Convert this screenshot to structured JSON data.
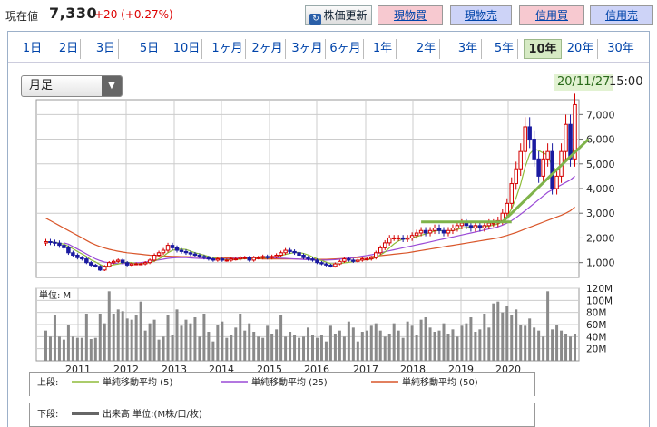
{
  "header": {
    "label": "現在値",
    "price": "7,330",
    "change": "+20 (+0.27%)"
  },
  "buttons": {
    "update": "株価更新",
    "update_icon": "refresh-icon",
    "genbutsu_buy": "現物買",
    "genbutsu_sell": "現物売",
    "shinyo_buy": "信用買",
    "shinyo_sell": "信用売"
  },
  "tabs": [
    "1日",
    "2日",
    "3日",
    "5日",
    "10日",
    "1ヶ月",
    "2ヶ月",
    "3ヶ月",
    "6ヶ月",
    "1年",
    "2年",
    "3年",
    "5年",
    "10年",
    "20年",
    "30年"
  ],
  "active_tab": "10年",
  "dropdown": {
    "value": "月足"
  },
  "timestamp": {
    "date": "20/11/27",
    "time": "15:00"
  },
  "colors": {
    "up": "#d40000",
    "down": "#1a1aa0",
    "ma5": "#8fbc3a",
    "ma25": "#9a4ad6",
    "ma50": "#d9562a",
    "volume": "#8a8a8a",
    "trend": "#7fb34a"
  },
  "chart_data": [
    {
      "type": "line",
      "title": "",
      "x_labels": [
        "2011",
        "2012",
        "2013",
        "2014",
        "2015",
        "2016",
        "2017",
        "2018",
        "2019",
        "2020"
      ],
      "y_ticks": [
        "7,000",
        "6,000",
        "5,000",
        "4,000",
        "3,000",
        "2,000",
        "1,000"
      ],
      "ylim": [
        400,
        7600
      ],
      "months": 118,
      "close": [
        1850,
        1820,
        1790,
        1700,
        1600,
        1400,
        1300,
        1200,
        1150,
        1000,
        900,
        850,
        700,
        850,
        1000,
        1050,
        1100,
        1000,
        900,
        950,
        950,
        950,
        1000,
        1100,
        1300,
        1400,
        1500,
        1700,
        1600,
        1500,
        1450,
        1400,
        1350,
        1300,
        1250,
        1200,
        1150,
        1100,
        1150,
        1100,
        1100,
        1150,
        1150,
        1200,
        1200,
        1100,
        1200,
        1200,
        1250,
        1200,
        1250,
        1300,
        1400,
        1500,
        1450,
        1400,
        1300,
        1200,
        1150,
        1100,
        1000,
        950,
        900,
        850,
        950,
        1050,
        1150,
        1100,
        1050,
        1100,
        1150,
        1150,
        1200,
        1400,
        1600,
        1800,
        2000,
        2000,
        2000,
        1950,
        2000,
        2100,
        2200,
        2300,
        2200,
        2300,
        2400,
        2300,
        2200,
        2300,
        2400,
        2500,
        2600,
        2500,
        2400,
        2500,
        2400,
        2500,
        2600,
        2600,
        2700,
        3000,
        3400,
        4200,
        4800,
        5500,
        6500,
        6000,
        5200,
        4500,
        5200,
        5500,
        4000,
        4500,
        5500,
        6600,
        5200,
        7400
      ],
      "ma5": [
        1850,
        1835,
        1820,
        1790,
        1750,
        1660,
        1560,
        1450,
        1350,
        1250,
        1110,
        1030,
        920,
        840,
        870,
        910,
        940,
        1000,
        1010,
        1000,
        960,
        960,
        970,
        1010,
        1060,
        1150,
        1260,
        1400,
        1500,
        1540,
        1550,
        1530,
        1470,
        1400,
        1350,
        1300,
        1250,
        1200,
        1160,
        1130,
        1120,
        1120,
        1130,
        1140,
        1160,
        1160,
        1170,
        1180,
        1190,
        1190,
        1220,
        1240,
        1280,
        1330,
        1370,
        1410,
        1410,
        1370,
        1310,
        1230,
        1150,
        1080,
        1020,
        960,
        950,
        960,
        990,
        1010,
        1040,
        1090,
        1110,
        1120,
        1140,
        1210,
        1310,
        1430,
        1600,
        1760,
        1880,
        1950,
        1990,
        2010,
        2050,
        2110,
        2160,
        2220,
        2280,
        2300,
        2280,
        2280,
        2300,
        2340,
        2400,
        2420,
        2440,
        2460,
        2460,
        2460,
        2480,
        2520,
        2560,
        2680,
        2860,
        3180,
        3620,
        4180,
        4880,
        5400,
        5600,
        5540,
        5440,
        5360,
        4880,
        4740,
        4940,
        5220,
        5160,
        5840
      ],
      "ma25": [
        null,
        null,
        null,
        null,
        1800,
        1750,
        1650,
        1550,
        1450,
        1350,
        1250,
        1150,
        1080,
        1020,
        990,
        970,
        960,
        960,
        970,
        980,
        990,
        1000,
        1020,
        1050,
        1080,
        1110,
        1140,
        1170,
        1190,
        1200,
        1200,
        1200,
        1190,
        1180,
        1170,
        1160,
        1150,
        1140,
        1140,
        1140,
        1150,
        1160,
        1170,
        1180,
        1190,
        1200,
        1210,
        1220,
        1220,
        1210,
        1200,
        1190,
        1180,
        1170,
        1160,
        1150,
        1140,
        1130,
        1120,
        1110,
        1100,
        1100,
        1100,
        1110,
        1120,
        1140,
        1160,
        1180,
        1200,
        1230,
        1260,
        1290,
        1320,
        1360,
        1400,
        1440,
        1480,
        1520,
        1560,
        1600,
        1640,
        1680,
        1720,
        1760,
        1800,
        1840,
        1880,
        1920,
        1960,
        2000,
        2040,
        2080,
        2120,
        2160,
        2200,
        2240,
        2280,
        2320,
        2360,
        2400,
        2450,
        2520,
        2600,
        2700,
        2820,
        2960,
        3100,
        3250,
        3400,
        3550,
        3700,
        3850,
        3950,
        4050,
        4150,
        4250,
        4350,
        4500
      ],
      "ma50": [
        2800,
        2700,
        2600,
        2500,
        2400,
        2300,
        2200,
        2100,
        2000,
        1900,
        1800,
        1720,
        1650,
        1590,
        1540,
        1500,
        1460,
        1430,
        1400,
        1380,
        1360,
        1340,
        1320,
        1300,
        1290,
        1280,
        1270,
        1260,
        1250,
        1250,
        1240,
        1240,
        1230,
        1230,
        1220,
        1220,
        1210,
        1210,
        1200,
        1200,
        1190,
        1190,
        1180,
        1180,
        1170,
        1170,
        1160,
        1160,
        1150,
        1150,
        1150,
        1150,
        1150,
        1150,
        1150,
        1150,
        1140,
        1140,
        1130,
        1130,
        1130,
        1130,
        1130,
        1140,
        1150,
        1160,
        1170,
        1180,
        1190,
        1200,
        1210,
        1220,
        1240,
        1260,
        1280,
        1300,
        1320,
        1340,
        1360,
        1380,
        1400,
        1430,
        1460,
        1490,
        1520,
        1550,
        1580,
        1610,
        1640,
        1670,
        1700,
        1730,
        1760,
        1790,
        1820,
        1850,
        1880,
        1910,
        1940,
        1970,
        2000,
        2050,
        2100,
        2160,
        2220,
        2290,
        2360,
        2430,
        2500,
        2570,
        2640,
        2710,
        2780,
        2850,
        2920,
        3000,
        3100,
        3250
      ],
      "trend_lines": [
        {
          "from_month": 83,
          "to_month": 103,
          "value": 2650
        },
        {
          "from_month": 101,
          "from_value": 2650,
          "to_month": 118,
          "to_value": 6000
        }
      ],
      "legend": {
        "upper_label": "上段:",
        "lower_label": "下段:",
        "ma5": "単純移動平均 (5)",
        "ma25": "単純移動平均 (25)",
        "ma50": "単純移動平均 (50)",
        "volume": "出来高 単位:(M株/口/枚)"
      }
    },
    {
      "type": "bar",
      "title": "",
      "unit_label": "単位: M",
      "y_ticks": [
        "120M",
        "100M",
        "80M",
        "60M",
        "40M",
        "20M"
      ],
      "ylim": [
        0,
        120
      ],
      "volume": [
        50,
        40,
        75,
        40,
        35,
        60,
        40,
        38,
        38,
        78,
        36,
        38,
        78,
        62,
        115,
        78,
        85,
        82,
        70,
        68,
        75,
        98,
        50,
        62,
        68,
        35,
        40,
        75,
        42,
        85,
        58,
        68,
        62,
        72,
        40,
        78,
        48,
        32,
        60,
        65,
        38,
        42,
        55,
        78,
        50,
        62,
        48,
        40,
        38,
        58,
        45,
        52,
        75,
        40,
        48,
        42,
        38,
        40,
        55,
        42,
        38,
        42,
        32,
        58,
        45,
        50,
        40,
        65,
        55,
        32,
        48,
        50,
        58,
        62,
        50,
        40,
        45,
        62,
        50,
        38,
        65,
        58,
        42,
        68,
        72,
        55,
        48,
        50,
        62,
        45,
        52,
        40,
        58,
        62,
        72,
        48,
        52,
        78,
        55,
        95,
        98,
        80,
        90,
        75,
        85,
        60,
        58,
        70,
        55,
        50,
        40,
        115,
        52,
        60,
        50,
        45,
        40,
        45
      ]
    }
  ]
}
